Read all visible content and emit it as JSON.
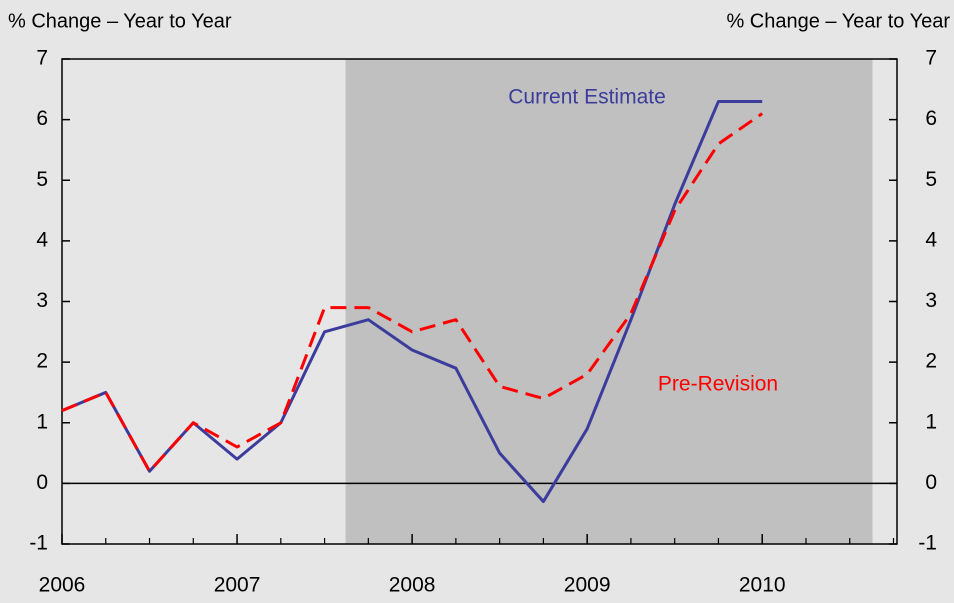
{
  "chart_data": {
    "type": "line",
    "y_label": "% Change – Year to Year",
    "y2_label": "% Change – Year to Year",
    "x": [
      2006,
      2006.25,
      2006.5,
      2006.75,
      2007,
      2007.25,
      2007.5,
      2007.75,
      2008,
      2008.25,
      2008.5,
      2008.75,
      2009,
      2009.25,
      2009.5,
      2009.75,
      2010
    ],
    "series": [
      {
        "name": "Current Estimate",
        "color": "#3c3c9c",
        "dash": false,
        "values": [
          1.2,
          1.5,
          0.2,
          1.0,
          0.4,
          1.0,
          2.5,
          2.7,
          2.2,
          1.9,
          0.5,
          -0.3,
          0.9,
          2.7,
          4.6,
          6.3,
          6.3
        ]
      },
      {
        "name": "Pre-Revision",
        "color": "#ff0000",
        "dash": true,
        "values": [
          1.2,
          1.5,
          0.2,
          1.0,
          0.6,
          1.0,
          2.9,
          2.9,
          2.5,
          2.7,
          1.6,
          1.4,
          1.8,
          2.8,
          4.5,
          5.6,
          6.1
        ]
      }
    ],
    "shaded_region": [
      2007.62,
      2010.63
    ],
    "xlim": [
      2006,
      2010.77
    ],
    "xticks": [
      2006,
      2007,
      2008,
      2009,
      2010
    ],
    "ylim": [
      -1,
      7
    ],
    "yticks": [
      -1,
      0,
      1,
      2,
      3,
      4,
      5,
      6,
      7
    ],
    "y2lim": [
      -1,
      7
    ],
    "y2ticks": [
      -1,
      0,
      1,
      2,
      3,
      4,
      5,
      6,
      7
    ]
  }
}
